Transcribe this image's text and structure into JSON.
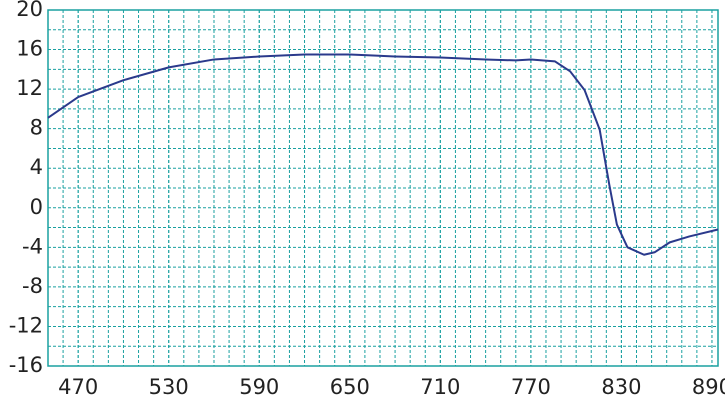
{
  "chart_data": {
    "type": "line",
    "x": [
      450,
      470,
      500,
      530,
      560,
      590,
      620,
      650,
      680,
      710,
      740,
      760,
      770,
      786,
      796,
      805.6,
      815.6,
      822,
      827,
      834,
      845,
      852,
      862,
      875,
      894
    ],
    "series": [
      {
        "color": "#2b3a8c",
        "values": [
          9.1,
          11.2,
          12.9,
          14.2,
          15.0,
          15.3,
          15.5,
          15.5,
          15.3,
          15.2,
          15.0,
          14.9,
          15.0,
          14.8,
          13.8,
          11.9,
          7.9,
          2.3,
          -1.7,
          -4.0,
          -4.75,
          -4.5,
          -3.5,
          -2.9,
          -2.2
        ]
      }
    ],
    "xlim": [
      450,
      894
    ],
    "ylim": [
      -16,
      20
    ],
    "xticks": [
      470,
      530,
      590,
      650,
      710,
      770,
      830,
      890
    ],
    "yticks": [
      -16,
      -12,
      -8,
      -4,
      0,
      4,
      8,
      12,
      16,
      20
    ],
    "grid": true
  }
}
